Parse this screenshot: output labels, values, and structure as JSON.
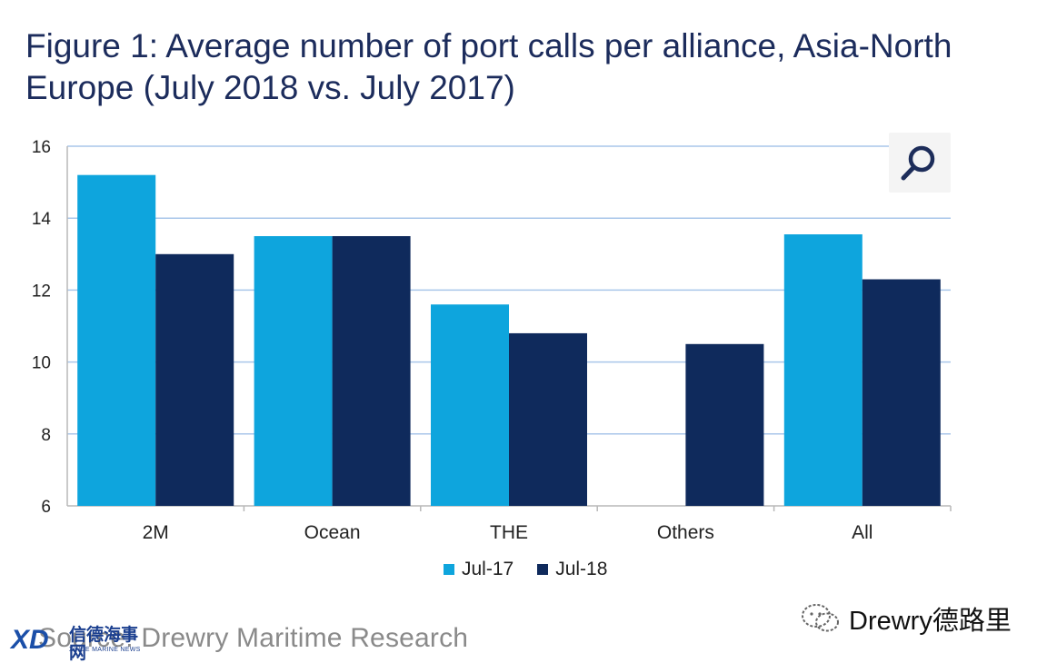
{
  "title": "Figure 1: Average number of port calls per alliance, Asia-North Europe (July 2018 vs. July 2017)",
  "colors": {
    "jul17": "#0ea5dd",
    "jul18": "#0f2a5c",
    "grid": "#a9c6ea",
    "axis": "#b8b8b8",
    "title": "#1c2c5c"
  },
  "chart_data": {
    "type": "bar",
    "categories": [
      "2M",
      "Ocean",
      "THE",
      "Others",
      "All"
    ],
    "series": [
      {
        "name": "Jul-17",
        "values": [
          15.2,
          13.5,
          11.6,
          null,
          13.55
        ]
      },
      {
        "name": "Jul-18",
        "values": [
          13.0,
          13.5,
          10.8,
          10.5,
          12.3
        ]
      }
    ],
    "ylim": [
      6,
      16
    ],
    "yticks": [
      "6",
      "8",
      "10",
      "12",
      "14",
      "16"
    ],
    "grid": true,
    "legend_position": "bottom"
  },
  "legend": {
    "jul17": "Jul-17",
    "jul18": "Jul-18"
  },
  "zoom_icon": "search-icon",
  "source": "Source: Drewry Maritime Research",
  "watermark": {
    "logo_text": "XD",
    "cn": "信德海事网",
    "en": "XINDE MARINE NEWS"
  },
  "wechat_label": "Drewry德路里",
  "wechat_icon": "wechat-icon"
}
